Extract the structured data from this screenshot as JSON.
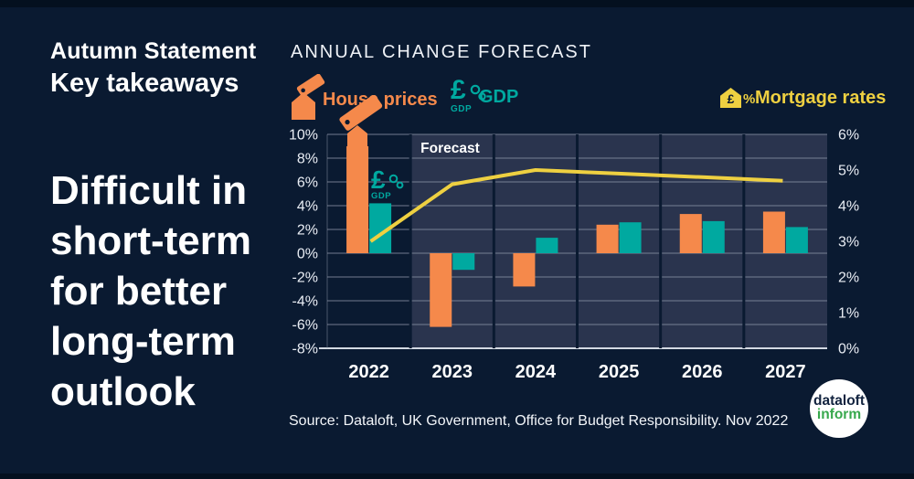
{
  "colors": {
    "background": "#0a1a31",
    "edge": "#04101f",
    "orange": "#f5894b",
    "teal": "#00a9a0",
    "yellow": "#eed041",
    "forecast_bg": "#2a344e",
    "grid": "#8b94a6",
    "axis_line": "#d3d9e2",
    "text": "#ffffff",
    "logo_navy": "#12233f",
    "logo_green": "#37a84c"
  },
  "left_panel": {
    "kicker1": "Autumn Statement",
    "kicker2": "Key takeaways",
    "headline_lines": [
      "Difficult in",
      "short-term",
      "for better",
      "long-term",
      "outlook"
    ]
  },
  "chart": {
    "title": "ANNUAL CHANGE FORECAST"
  },
  "legend": {
    "house_prices": {
      "label": "House prices",
      "color": "#f5894b",
      "icon": "house-tag-icon"
    },
    "gdp": {
      "label": "GDP",
      "color": "#00a9a0",
      "icon": "pound-gears-icon"
    },
    "mortgage_rates": {
      "label": "Mortgage rates",
      "color": "#eed041",
      "icon": "house-percent-icon"
    }
  },
  "icons": {
    "pound": "£",
    "percent": "%",
    "gdp_sub": "GDP"
  },
  "chart_data": {
    "type": "bar",
    "categories": [
      "2022",
      "2023",
      "2024",
      "2025",
      "2026",
      "2027"
    ],
    "series": [
      {
        "name": "House prices",
        "render": "bar",
        "axis": "left",
        "color": "#f5894b",
        "values": [
          9.0,
          -6.2,
          -2.8,
          2.4,
          3.3,
          3.5
        ]
      },
      {
        "name": "GDP",
        "render": "bar",
        "axis": "left",
        "color": "#00a9a0",
        "values": [
          4.2,
          -1.4,
          1.3,
          2.6,
          2.7,
          2.2
        ]
      },
      {
        "name": "Mortgage rates",
        "render": "line",
        "axis": "right",
        "color": "#eed041",
        "values": [
          3.0,
          4.6,
          5.0,
          4.9,
          4.8,
          4.7
        ]
      }
    ],
    "left_axis": {
      "min": -8,
      "max": 10,
      "step": 2,
      "suffix": "%"
    },
    "right_axis": {
      "min": 0,
      "max": 6,
      "step": 1,
      "suffix": "%"
    },
    "forecast": {
      "label": "Forecast",
      "start_category": "2023"
    },
    "grid": true,
    "legend_position": "top"
  },
  "source": "Source: Dataloft, UK Government, Office for Budget Responsibility. Nov 2022",
  "logo": {
    "line1": "dataloft",
    "line2": "inform"
  }
}
